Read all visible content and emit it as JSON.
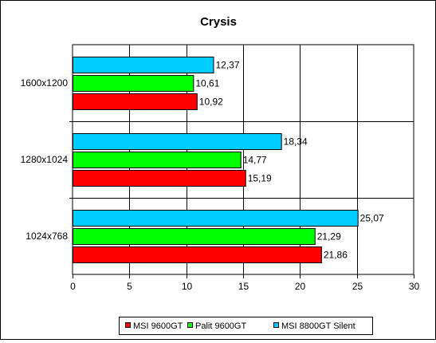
{
  "chart_data": {
    "type": "bar",
    "orientation": "horizontal",
    "title": "Crysis",
    "categories": [
      "1600x1200",
      "1280x1024",
      "1024x768"
    ],
    "series": [
      {
        "name": "MSI 9600GT",
        "color": "#ff0000",
        "values": [
          10.92,
          15.19,
          21.86
        ]
      },
      {
        "name": "Palit 9600GT",
        "color": "#00ff00",
        "values": [
          10.61,
          14.77,
          21.29
        ]
      },
      {
        "name": "MSI 8800GT Silent",
        "color": "#00ccff",
        "values": [
          12.37,
          18.34,
          25.07
        ]
      }
    ],
    "value_labels": [
      [
        "10,92",
        "15,19",
        "21,86"
      ],
      [
        "10,61",
        "14,77",
        "21,29"
      ],
      [
        "12,37",
        "18,34",
        "25,07"
      ]
    ],
    "xlim": [
      0,
      30
    ],
    "xticks": [
      "0",
      "5",
      "10",
      "15",
      "20",
      "25",
      "30"
    ],
    "grid": true,
    "legend_position": "bottom"
  }
}
